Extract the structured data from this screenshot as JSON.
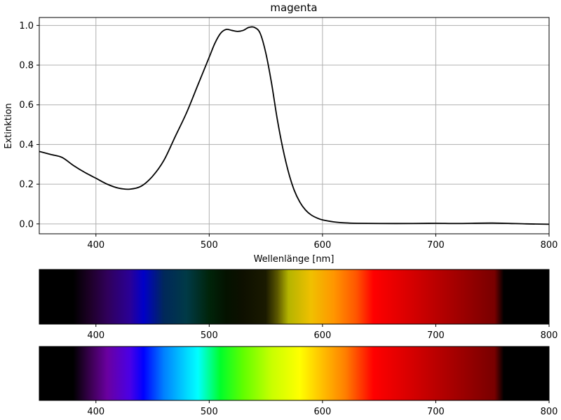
{
  "chart_data": [
    {
      "type": "line",
      "title": "magenta",
      "xlabel": "Wellenlänge [nm]",
      "ylabel": "Extinktion",
      "xlim": [
        350,
        800
      ],
      "ylim": [
        -0.05,
        1.04
      ],
      "grid": true,
      "x_ticks": [
        400,
        500,
        600,
        700,
        800
      ],
      "y_ticks": [
        0.0,
        0.2,
        0.4,
        0.6,
        0.8,
        1.0
      ],
      "x_tick_labels": [
        "400",
        "500",
        "600",
        "700",
        "800"
      ],
      "y_tick_labels": [
        "0.0",
        "0.2",
        "0.4",
        "0.6",
        "0.8",
        "1.0"
      ],
      "line_color": "#000000",
      "series": [
        {
          "x": [
            350,
            360,
            370,
            380,
            390,
            400,
            410,
            420,
            430,
            440,
            450,
            460,
            470,
            480,
            490,
            500,
            505,
            510,
            515,
            520,
            525,
            530,
            535,
            540,
            545,
            550,
            555,
            560,
            565,
            570,
            575,
            580,
            585,
            590,
            595,
            600,
            610,
            620,
            630,
            650,
            680,
            700,
            720,
            750,
            780,
            800
          ],
          "y": [
            0.365,
            0.35,
            0.335,
            0.295,
            0.26,
            0.23,
            0.2,
            0.18,
            0.175,
            0.19,
            0.24,
            0.32,
            0.44,
            0.56,
            0.7,
            0.84,
            0.91,
            0.96,
            0.98,
            0.975,
            0.97,
            0.975,
            0.99,
            0.99,
            0.96,
            0.86,
            0.71,
            0.53,
            0.38,
            0.26,
            0.17,
            0.11,
            0.07,
            0.045,
            0.03,
            0.02,
            0.01,
            0.005,
            0.003,
            0.002,
            0.002,
            0.003,
            0.002,
            0.004,
            0.0,
            -0.002
          ]
        }
      ]
    },
    {
      "type": "spectrum",
      "xlim": [
        350,
        800
      ],
      "x_ticks": [
        400,
        500,
        600,
        700,
        800
      ],
      "x_tick_labels": [
        "400",
        "500",
        "600",
        "700",
        "800"
      ],
      "description_of_colors": "transmitted spectrum (filtered through magenta)",
      "stops": [
        {
          "nm": 350,
          "color": "#000000"
        },
        {
          "nm": 380,
          "color": "#000000"
        },
        {
          "nm": 395,
          "color": "#1e0028"
        },
        {
          "nm": 410,
          "color": "#30005a"
        },
        {
          "nm": 430,
          "color": "#2a0096"
        },
        {
          "nm": 442,
          "color": "#0000c8"
        },
        {
          "nm": 460,
          "color": "#00285a"
        },
        {
          "nm": 480,
          "color": "#003a46"
        },
        {
          "nm": 500,
          "color": "#00240a"
        },
        {
          "nm": 515,
          "color": "#041200"
        },
        {
          "nm": 530,
          "color": "#0e1000"
        },
        {
          "nm": 550,
          "color": "#1a1a00"
        },
        {
          "nm": 560,
          "color": "#5a5600"
        },
        {
          "nm": 570,
          "color": "#b4b400"
        },
        {
          "nm": 590,
          "color": "#f0c000"
        },
        {
          "nm": 610,
          "color": "#ff9600"
        },
        {
          "nm": 630,
          "color": "#ff5500"
        },
        {
          "nm": 645,
          "color": "#ff0000"
        },
        {
          "nm": 680,
          "color": "#d40000"
        },
        {
          "nm": 720,
          "color": "#a00000"
        },
        {
          "nm": 752,
          "color": "#780000"
        },
        {
          "nm": 760,
          "color": "#000000"
        },
        {
          "nm": 800,
          "color": "#000000"
        }
      ]
    },
    {
      "type": "spectrum",
      "xlim": [
        350,
        800
      ],
      "x_ticks": [
        400,
        500,
        600,
        700,
        800
      ],
      "x_tick_labels": [
        "400",
        "500",
        "600",
        "700",
        "800"
      ],
      "stops": [
        {
          "nm": 350,
          "color": "#000000"
        },
        {
          "nm": 380,
          "color": "#000000"
        },
        {
          "nm": 395,
          "color": "#3a0050"
        },
        {
          "nm": 410,
          "color": "#6a00a0"
        },
        {
          "nm": 430,
          "color": "#4a00e6"
        },
        {
          "nm": 442,
          "color": "#0000ff"
        },
        {
          "nm": 460,
          "color": "#0080ff"
        },
        {
          "nm": 480,
          "color": "#00d8ff"
        },
        {
          "nm": 490,
          "color": "#00ffff"
        },
        {
          "nm": 510,
          "color": "#00ff2a"
        },
        {
          "nm": 530,
          "color": "#60ff00"
        },
        {
          "nm": 555,
          "color": "#c8ff00"
        },
        {
          "nm": 580,
          "color": "#ffff00"
        },
        {
          "nm": 600,
          "color": "#ffbe00"
        },
        {
          "nm": 620,
          "color": "#ff8000"
        },
        {
          "nm": 645,
          "color": "#ff0000"
        },
        {
          "nm": 680,
          "color": "#d40000"
        },
        {
          "nm": 720,
          "color": "#a00000"
        },
        {
          "nm": 752,
          "color": "#780000"
        },
        {
          "nm": 760,
          "color": "#000000"
        },
        {
          "nm": 800,
          "color": "#000000"
        }
      ]
    }
  ]
}
